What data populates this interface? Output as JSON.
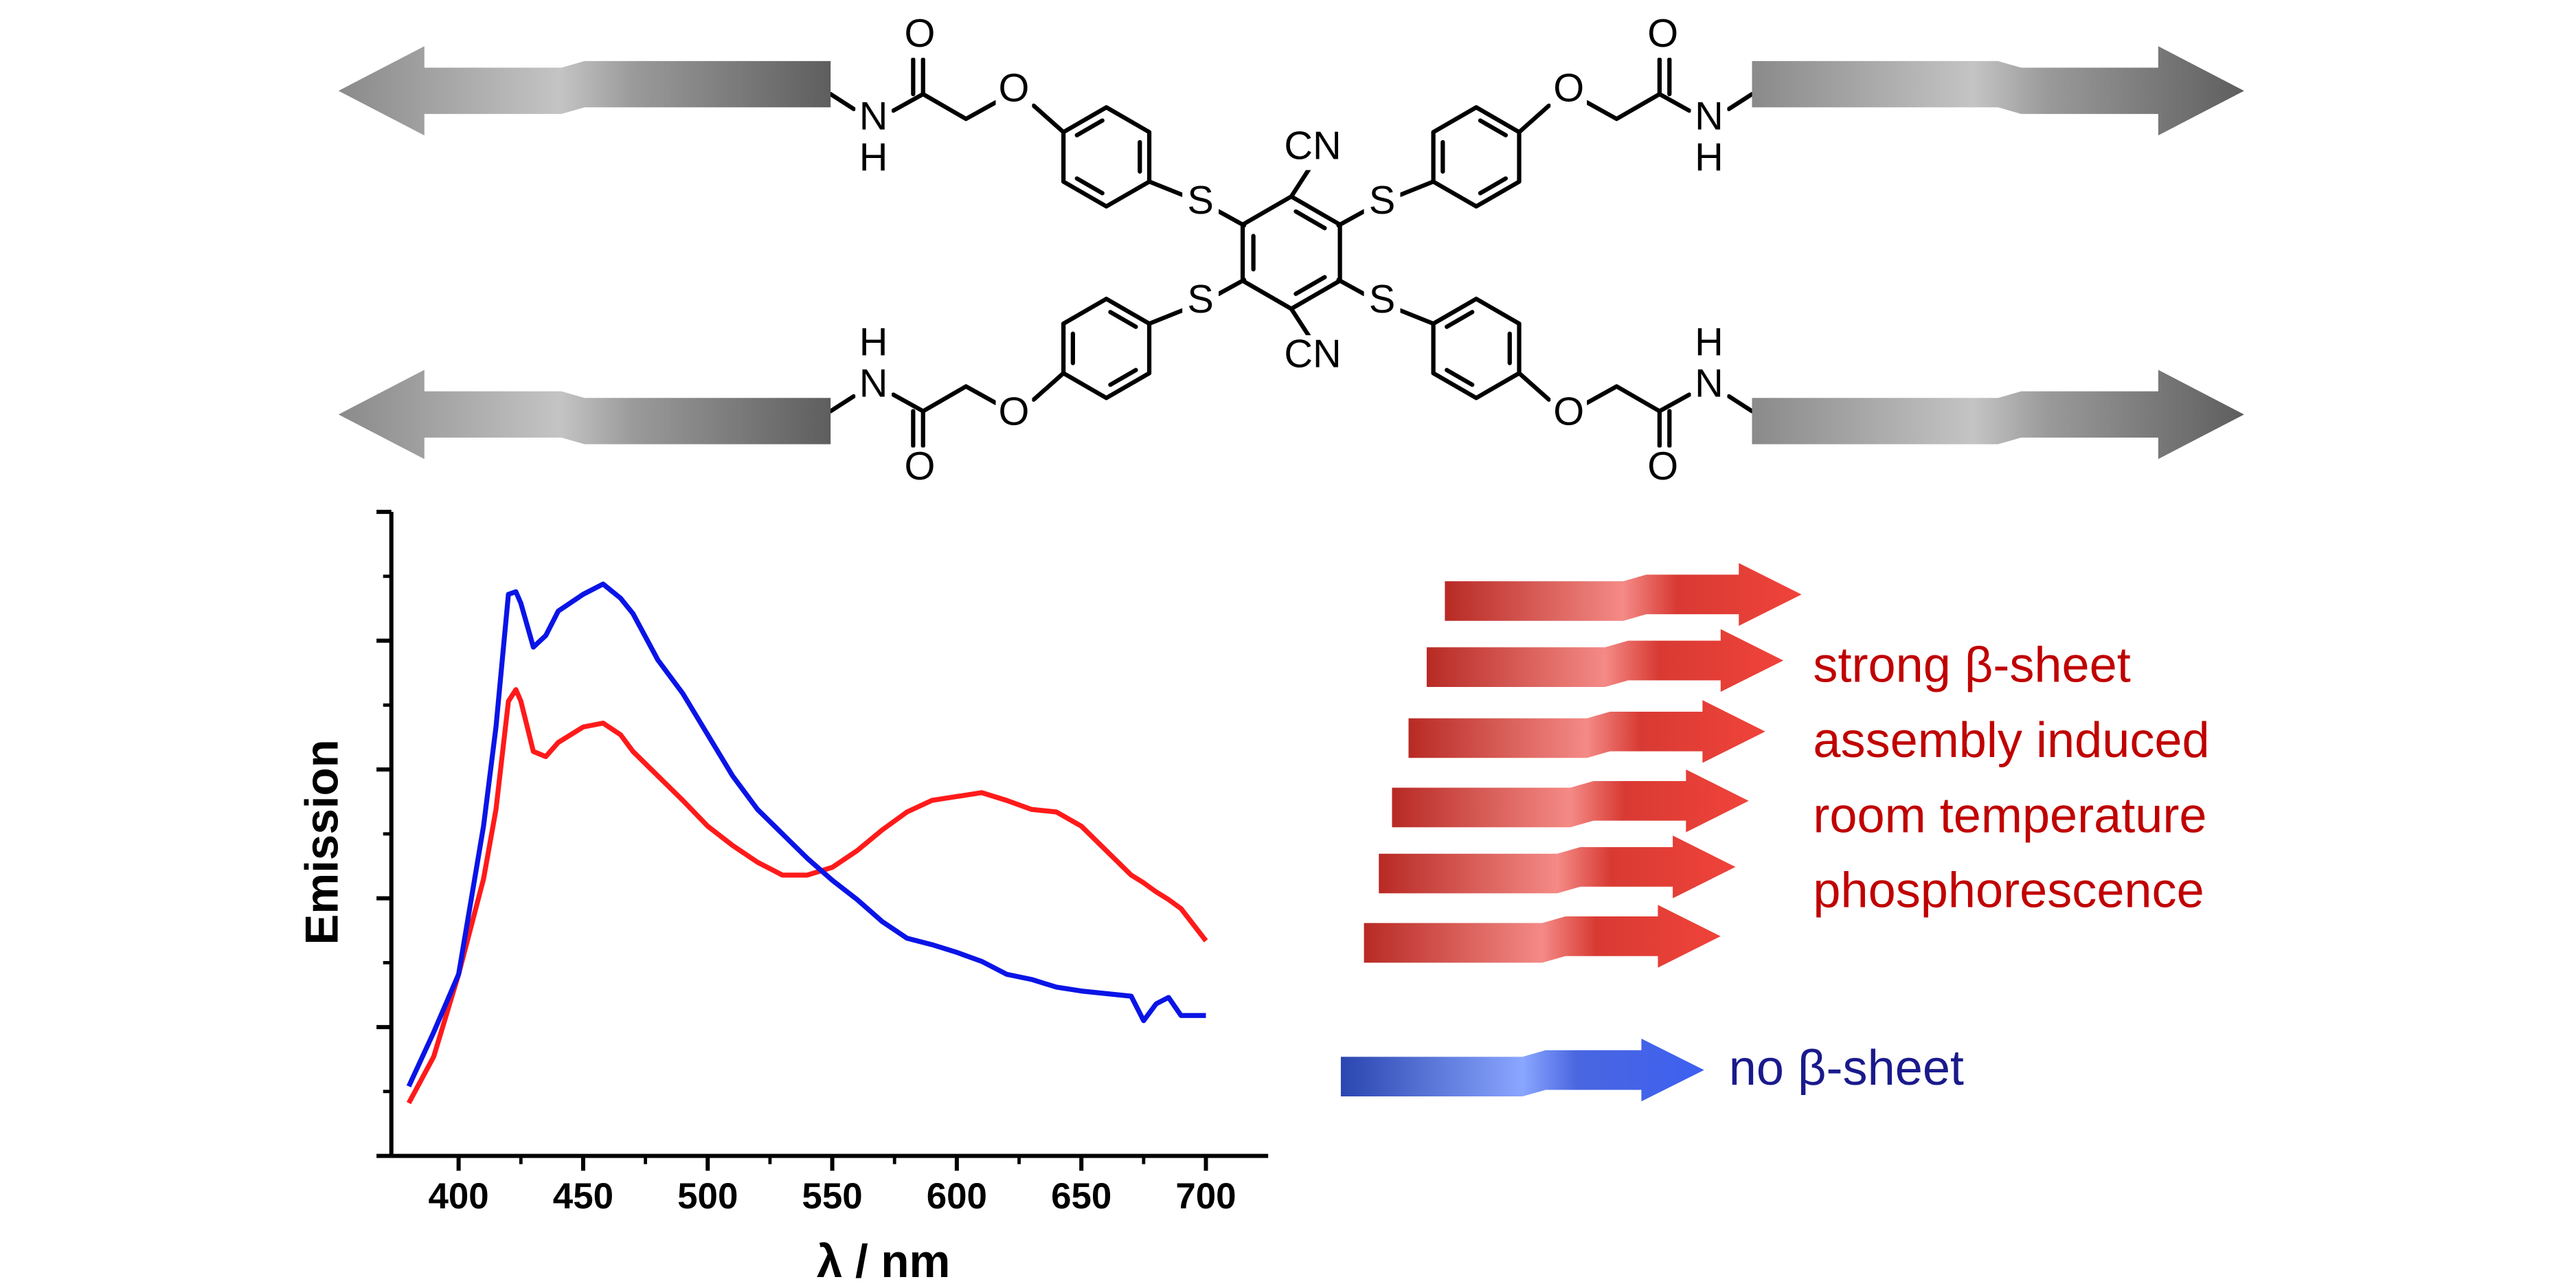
{
  "structure": {
    "atoms": [
      "O",
      "O",
      "N",
      "H",
      "S",
      "O",
      "O",
      "N",
      "H",
      "S",
      "O",
      "O",
      "N",
      "H",
      "S",
      "O",
      "O",
      "N",
      "H",
      "S",
      "CN",
      "CN"
    ]
  },
  "chart_data": {
    "type": "line",
    "x_label": "λ / nm",
    "y_label": "Emission",
    "xlim": [
      373,
      725
    ],
    "ylim": [
      0,
      5
    ],
    "xticks": [
      400,
      450,
      500,
      550,
      600,
      650,
      700
    ],
    "xminor": [
      425,
      475,
      525,
      575,
      625,
      675
    ],
    "ytick_marks": [
      0,
      1,
      2,
      3,
      4,
      5
    ],
    "yminor": [
      0.5,
      1.5,
      2.5,
      3.5,
      4.5
    ],
    "x": [
      380,
      390,
      400,
      410,
      415,
      420,
      423,
      425,
      430,
      435,
      440,
      450,
      458,
      465,
      470,
      480,
      490,
      500,
      510,
      520,
      530,
      540,
      550,
      560,
      570,
      580,
      590,
      600,
      610,
      620,
      630,
      640,
      650,
      660,
      670,
      675,
      680,
      685,
      690,
      700
    ],
    "series": [
      {
        "name_lines": [
          "strong β-sheet",
          "assembly induced",
          "room temperature",
          "phosphorescence"
        ],
        "color": "#ff1a1a",
        "text_color": "#c00000",
        "values": [
          0.41,
          0.77,
          1.41,
          2.15,
          2.69,
          3.53,
          3.62,
          3.53,
          3.14,
          3.1,
          3.21,
          3.33,
          3.36,
          3.27,
          3.14,
          2.95,
          2.76,
          2.56,
          2.41,
          2.28,
          2.18,
          2.18,
          2.24,
          2.37,
          2.53,
          2.67,
          2.76,
          2.79,
          2.82,
          2.76,
          2.69,
          2.67,
          2.56,
          2.37,
          2.18,
          2.12,
          2.05,
          1.99,
          1.92,
          1.67
        ]
      },
      {
        "name_lines": [
          "no β-sheet"
        ],
        "color": "#0a14e6",
        "text_color": "#1a1a8c",
        "values": [
          0.54,
          0.96,
          1.41,
          2.56,
          3.33,
          4.36,
          4.38,
          4.29,
          3.95,
          4.04,
          4.23,
          4.36,
          4.44,
          4.33,
          4.21,
          3.85,
          3.59,
          3.27,
          2.95,
          2.69,
          2.5,
          2.31,
          2.14,
          1.99,
          1.82,
          1.69,
          1.64,
          1.58,
          1.51,
          1.41,
          1.37,
          1.31,
          1.28,
          1.26,
          1.24,
          1.05,
          1.18,
          1.23,
          1.09,
          1.09
        ]
      }
    ]
  }
}
